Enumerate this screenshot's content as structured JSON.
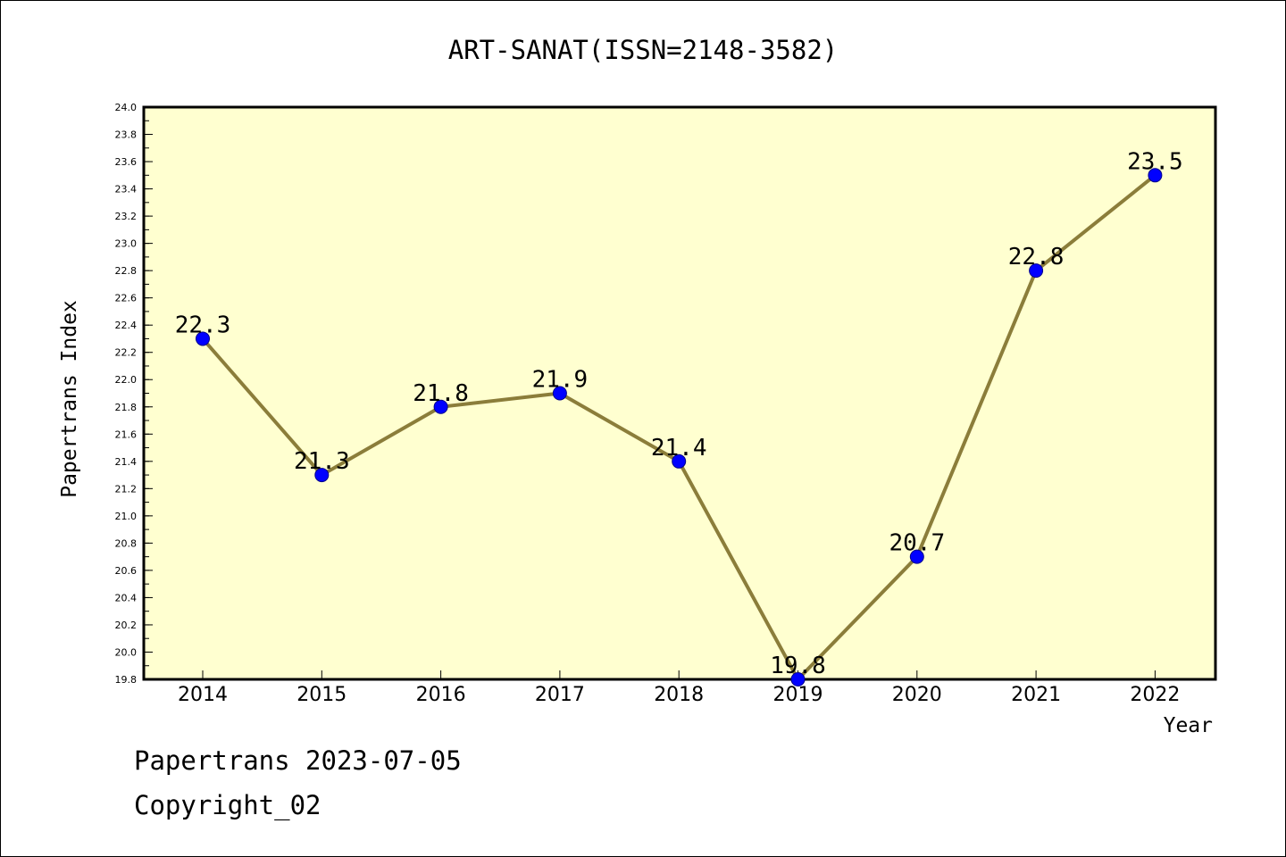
{
  "chart_data": {
    "type": "line",
    "title": "ART-SANAT(ISSN=2148-3582)",
    "xlabel": "Year",
    "ylabel": "Papertrans Index",
    "categories": [
      "2014",
      "2015",
      "2016",
      "2017",
      "2018",
      "2019",
      "2020",
      "2021",
      "2022"
    ],
    "series": [
      {
        "values": [
          22.3,
          21.3,
          21.8,
          21.9,
          21.4,
          19.8,
          20.7,
          22.8,
          23.5
        ],
        "data_labels": [
          "22.3",
          "21.3",
          "21.8",
          "21.9",
          "21.4",
          "19.8",
          "20.7",
          "22.8",
          "23.5"
        ]
      }
    ],
    "ylim": [
      19.8,
      24.0
    ],
    "yticks": [
      "19.8",
      "20.0",
      "20.2",
      "20.4",
      "20.6",
      "20.8",
      "21.0",
      "21.2",
      "21.4",
      "21.6",
      "21.8",
      "22.0",
      "22.2",
      "22.4",
      "22.6",
      "22.8",
      "23.0",
      "23.2",
      "23.4",
      "23.6",
      "23.8",
      "24.0"
    ],
    "grid": false,
    "colors": {
      "plot_background": "#ffffd0",
      "line": "#8b7d3a",
      "marker": "#0000ff"
    }
  },
  "footer": {
    "date_text": "Papertrans 2023-07-05",
    "copyright_text": "Copyright_02"
  }
}
